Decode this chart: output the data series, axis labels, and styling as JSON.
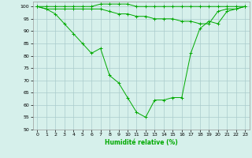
{
  "xlabel": "Humidité relative (%)",
  "background_color": "#d6f0eb",
  "line_color": "#00aa00",
  "grid_color": "#aacccc",
  "xlim": [
    -0.5,
    23.5
  ],
  "ylim": [
    50,
    102
  ],
  "yticks": [
    50,
    55,
    60,
    65,
    70,
    75,
    80,
    85,
    90,
    95,
    100
  ],
  "xticks": [
    0,
    1,
    2,
    3,
    4,
    5,
    6,
    7,
    8,
    9,
    10,
    11,
    12,
    13,
    14,
    15,
    16,
    17,
    18,
    19,
    20,
    21,
    22,
    23
  ],
  "series": [
    [
      100,
      100,
      100,
      100,
      100,
      100,
      100,
      101,
      101,
      101,
      101,
      100,
      100,
      100,
      100,
      100,
      100,
      100,
      100,
      100,
      100,
      100,
      100,
      100
    ],
    [
      100,
      99,
      99,
      99,
      99,
      99,
      99,
      99,
      98,
      97,
      97,
      96,
      96,
      95,
      95,
      95,
      94,
      94,
      93,
      93,
      98,
      99,
      99,
      100
    ],
    [
      100,
      99,
      97,
      93,
      89,
      85,
      81,
      83,
      72,
      69,
      63,
      57,
      55,
      62,
      62,
      63,
      63,
      81,
      91,
      94,
      93,
      98,
      99,
      100
    ]
  ]
}
